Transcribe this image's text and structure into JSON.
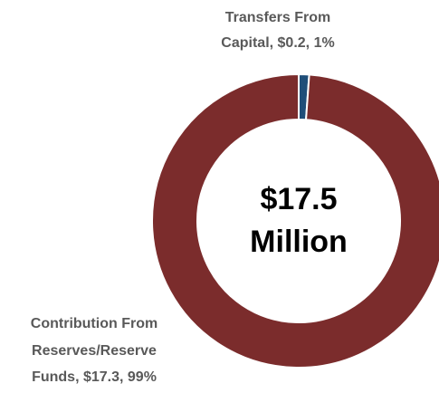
{
  "chart_data": {
    "type": "pie",
    "style": "donut",
    "center_text": [
      "$17.5",
      "Million"
    ],
    "slices": [
      {
        "name": "Transfers From Capital",
        "value": 0.2,
        "percent": 1,
        "color": "#1f4e79",
        "label_lines": [
          "Transfers From",
          "Capital, $0.2, 1%"
        ]
      },
      {
        "name": "Contribution From Reserves/Reserve Funds",
        "value": 17.3,
        "percent": 99,
        "color": "#7b2c2c",
        "label_lines": [
          "Contribution From",
          "Reserves/Reserve",
          "Funds, $17.3, 99%"
        ]
      }
    ],
    "legend": "none"
  }
}
